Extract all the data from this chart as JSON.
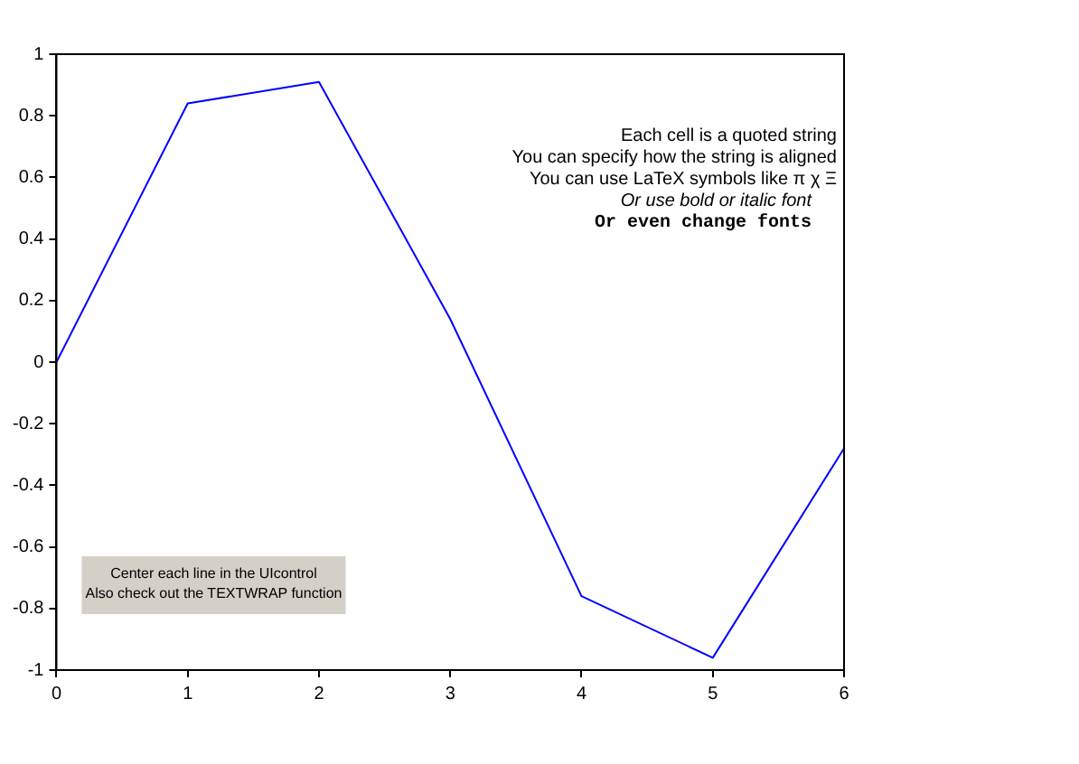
{
  "chart_data": {
    "type": "line",
    "x": [
      0,
      1,
      2,
      3,
      4,
      5,
      6
    ],
    "series": [
      {
        "color": "#0000ff",
        "values": [
          0,
          0.84,
          0.91,
          0.14,
          -0.76,
          -0.96,
          -0.28
        ]
      }
    ],
    "xlim": [
      0,
      6
    ],
    "xticks": [
      0,
      1,
      2,
      3,
      4,
      5,
      6
    ],
    "ylim": [
      -1,
      1
    ],
    "yticks": [
      -1,
      -0.8,
      -0.6,
      -0.4,
      -0.2,
      0,
      0.2,
      0.4,
      0.6,
      0.8,
      1
    ],
    "grid": false,
    "legend": false,
    "marker": "none",
    "line_style": "solid",
    "annotations": [
      "Each cell is a quoted string",
      "You can specify how the string is aligned",
      "You can use LaTeX symbols like π χ Ξ",
      "Or use bold or italic font",
      "Or even change fonts",
      "Center each line in the UIcontrol",
      "Also check out the TEXTWRAP function"
    ]
  }
}
